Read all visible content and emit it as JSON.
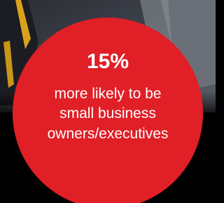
{
  "stat": {
    "headline": "15%",
    "lines": [
      "more likely to be",
      "small business",
      "owners/executives"
    ]
  }
}
